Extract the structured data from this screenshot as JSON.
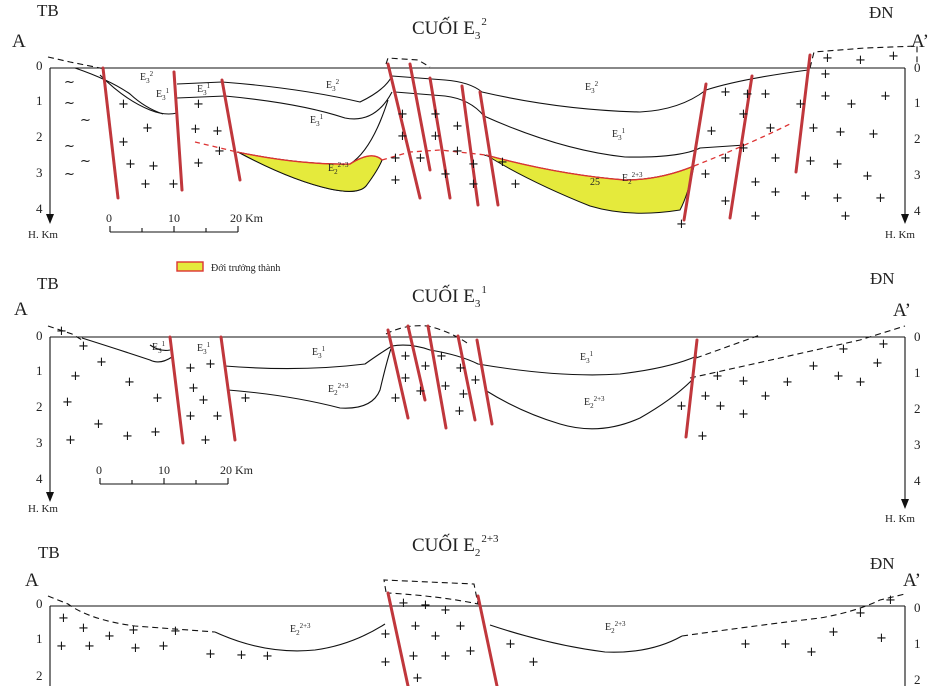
{
  "panels": [
    {
      "title_main": "CUỐI E",
      "title_sub": "3",
      "title_sup": "2",
      "left_label": "A",
      "left_dir": "TB",
      "right_label": "A’",
      "right_dir": "ĐN",
      "depth_ticks_left": [
        "0",
        "1",
        "2",
        "3",
        "4"
      ],
      "depth_ticks_right": [
        "0",
        "1",
        "2",
        "3",
        "4"
      ],
      "depth_unit": "H. Km",
      "scale_labels": [
        "0",
        "10",
        "20 Km"
      ],
      "formation_labels": [
        {
          "base": "E",
          "sub": "3",
          "sup": "2"
        },
        {
          "base": "E",
          "sub": "3",
          "sup": "1"
        },
        {
          "base": "E",
          "sub": "3",
          "sup": "1"
        },
        {
          "base": "E",
          "sub": "3",
          "sup": "2"
        },
        {
          "base": "E",
          "sub": "3",
          "sup": "1"
        },
        {
          "base": "E",
          "sub": "2",
          "sup": "2+3"
        },
        {
          "base": "E",
          "sub": "3",
          "sup": "2"
        },
        {
          "base": "E",
          "sub": "3",
          "sup": "1"
        },
        {
          "base": "E",
          "sub": "2",
          "sup": "2+3"
        }
      ],
      "annotation": "25"
    },
    {
      "title_main": "CUỐI E",
      "title_sub": "3",
      "title_sup": "1",
      "left_label": "A",
      "left_dir": "TB",
      "right_label": "A’",
      "right_dir": "ĐN",
      "depth_ticks_left": [
        "0",
        "1",
        "2",
        "3",
        "4"
      ],
      "depth_ticks_right": [
        "0",
        "1",
        "2",
        "3",
        "4"
      ],
      "depth_unit_left": "H. Km",
      "depth_unit_right": "H. Km",
      "scale_labels": [
        "0",
        "10",
        "20 Km"
      ],
      "formation_labels": [
        {
          "base": "E",
          "sub": "3",
          "sup": "1"
        },
        {
          "base": "E",
          "sub": "3",
          "sup": "1"
        },
        {
          "base": "E",
          "sub": "3",
          "sup": "1"
        },
        {
          "base": "E",
          "sub": "2",
          "sup": "2+3"
        },
        {
          "base": "E",
          "sub": "3",
          "sup": "1"
        },
        {
          "base": "E",
          "sub": "2",
          "sup": "2+3"
        }
      ]
    },
    {
      "title_main": "CUỐI E",
      "title_sub": "2",
      "title_sup": "2+3",
      "left_label": "A",
      "left_dir": "TB",
      "right_label": "A’",
      "right_dir": "ĐN",
      "depth_ticks_left": [
        "0",
        "1",
        "2"
      ],
      "depth_ticks_right": [
        "0",
        "1",
        "2"
      ],
      "formation_labels": [
        {
          "base": "E",
          "sub": "2",
          "sup": "2+3"
        },
        {
          "base": "E",
          "sub": "2",
          "sup": "2+3"
        }
      ]
    }
  ],
  "legend": {
    "label": "Đới trưởng thành",
    "color": "#e5ea3c",
    "border_color": "#d33"
  },
  "colors": {
    "fault": "#c0373c",
    "maturity_zone": "#e5ea3c",
    "maturity_boundary": "#d33"
  },
  "basement_symbol": "+",
  "sediment_symbol": "~"
}
